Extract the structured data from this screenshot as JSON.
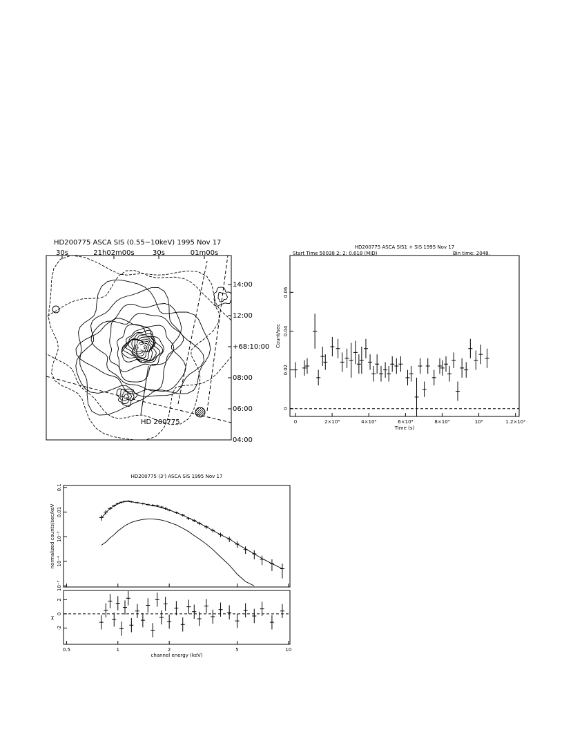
{
  "chart_data": [
    {
      "type": "contour",
      "title": "HD200775    ASCA SIS (0.55−10keV)    1995 Nov 17",
      "x_labels": [
        "30s",
        "21h02m00s",
        "30s",
        "01m00s"
      ],
      "y_labels": [
        "14:00",
        "12:00",
        "+68:10:00",
        "08:00",
        "06:00",
        "04:00"
      ],
      "source_label": "HD 200775"
    },
    {
      "type": "errorbar",
      "title": "HD200775    ASCA  SIS1 + SIS    1995 Nov 17",
      "start_time": "Start Time 50038  2: 2: 0.618 (MJD)",
      "bin_time": "Bin time:   2048.",
      "xlabel": "Time (s)",
      "ylabel": "Count/sec",
      "color": "#000000",
      "x": [
        0,
        4900,
        6400,
        10600,
        12500,
        14800,
        16300,
        20100,
        23200,
        25500,
        28100,
        30400,
        32700,
        34600,
        36100,
        38400,
        40700,
        42600,
        44500,
        46700,
        49000,
        50900,
        52800,
        55100,
        57400,
        61200,
        63100,
        66100,
        68000,
        70300,
        72200,
        75600,
        78700,
        80200,
        82100,
        84000,
        86300,
        88500,
        90800,
        93100,
        95400,
        98400,
        101100,
        104500
      ],
      "values": [
        0.02,
        0.021,
        0.022,
        0.04,
        0.016,
        0.027,
        0.024,
        0.032,
        0.031,
        0.024,
        0.026,
        0.025,
        0.029,
        0.023,
        0.025,
        0.031,
        0.024,
        0.018,
        0.023,
        0.018,
        0.02,
        0.018,
        0.023,
        0.022,
        0.023,
        0.016,
        0.018,
        0.006,
        0.022,
        0.01,
        0.022,
        0.016,
        0.022,
        0.021,
        0.023,
        0.018,
        0.025,
        0.009,
        0.021,
        0.02,
        0.031,
        0.025,
        0.028,
        0.026
      ],
      "errors": [
        0.004,
        0.004,
        0.004,
        0.009,
        0.004,
        0.005,
        0.004,
        0.005,
        0.005,
        0.005,
        0.005,
        0.009,
        0.006,
        0.005,
        0.007,
        0.005,
        0.004,
        0.004,
        0.005,
        0.004,
        0.004,
        0.004,
        0.004,
        0.004,
        0.004,
        0.004,
        0.004,
        0.01,
        0.004,
        0.004,
        0.004,
        0.004,
        0.004,
        0.004,
        0.004,
        0.004,
        0.004,
        0.005,
        0.005,
        0.004,
        0.005,
        0.005,
        0.005,
        0.005
      ],
      "xlim": [
        -3000,
        122000
      ],
      "ylim": [
        -0.004,
        0.079
      ],
      "xticks": [
        0,
        {
          "value": 20000,
          "label": "2×10⁴"
        },
        {
          "value": 40000,
          "label": "4×10⁴"
        },
        {
          "value": 60000,
          "label": "6×10⁴"
        },
        {
          "value": 80000,
          "label": "8×10⁴"
        },
        {
          "value": 100000,
          "label": "10⁵"
        },
        {
          "value": 120000,
          "label": "1.2×10⁵"
        }
      ],
      "yticks": [
        0,
        0.02,
        0.04,
        0.06
      ]
    },
    {
      "type": "spectrum",
      "title": "HD200775 (3')    ASCA SIS    1995 Nov 17",
      "xlabel": "channel energy (keV)",
      "ylabel": "normalized counts/sec/keV",
      "xscale": "log",
      "yscale": "log",
      "xlim": [
        0.48,
        10.2
      ],
      "ylim": [
        9e-06,
        0.12
      ],
      "xticks": [
        0.5,
        1,
        2,
        5,
        10
      ],
      "yticks": [
        0.1,
        0.01,
        {
          "value": 0.001,
          "label": "10⁻³"
        },
        {
          "value": 0.0001,
          "label": "10⁻⁴"
        },
        {
          "value": 1e-05,
          "label": "10⁻⁵"
        }
      ],
      "x": [
        0.8,
        0.85,
        0.9,
        0.95,
        1.0,
        1.05,
        1.1,
        1.15,
        1.2,
        1.3,
        1.4,
        1.5,
        1.6,
        1.7,
        1.8,
        1.9,
        2.0,
        2.2,
        2.4,
        2.6,
        2.8,
        3.0,
        3.3,
        3.6,
        4.0,
        4.5,
        5.0,
        5.6,
        6.3,
        7.0,
        8.0,
        9.2
      ],
      "series": [
        {
          "name": "data",
          "color": "#000000",
          "values": [
            0.006,
            0.01,
            0.014,
            0.018,
            0.022,
            0.025,
            0.027,
            0.028,
            0.026,
            0.024,
            0.022,
            0.02,
            0.019,
            0.018,
            0.016,
            0.014,
            0.012,
            0.0095,
            0.0075,
            0.0055,
            0.0045,
            0.0035,
            0.0025,
            0.0018,
            0.0012,
            0.0008,
            0.0005,
            0.0003,
            0.0002,
            0.00012,
            8e-05,
            5e-05
          ],
          "errors": [
            0.0015,
            0.002,
            0.002,
            0.002,
            0.002,
            0.002,
            0.002,
            0.002,
            0.002,
            0.002,
            0.002,
            0.002,
            0.002,
            0.002,
            0.0015,
            0.0015,
            0.0012,
            0.001,
            0.0009,
            0.0007,
            0.0006,
            0.0005,
            0.0004,
            0.0003,
            0.00025,
            0.0002,
            0.00015,
            0.0001,
            8e-05,
            5e-05,
            4e-05,
            3e-05
          ]
        },
        {
          "name": "model",
          "color": "#000000",
          "values": [
            0.0055,
            0.0095,
            0.014,
            0.018,
            0.022,
            0.025,
            0.027,
            0.027,
            0.026,
            0.024,
            0.022,
            0.02,
            0.018,
            0.017,
            0.015,
            0.0135,
            0.012,
            0.0095,
            0.0075,
            0.0057,
            0.0045,
            0.0035,
            0.0025,
            0.0018,
            0.0012,
            0.0008,
            0.0005,
            0.00032,
            0.0002,
            0.00013,
            8e-05,
            5e-05
          ]
        },
        {
          "name": "component",
          "color": "#000000",
          "values": [
            0.00045,
            0.0006,
            0.0009,
            0.0012,
            0.0017,
            0.0022,
            0.0028,
            0.0033,
            0.0038,
            0.0045,
            0.005,
            0.0052,
            0.0052,
            0.005,
            0.0047,
            0.0043,
            0.0038,
            0.003,
            0.0022,
            0.0016,
            0.0011,
            0.0008,
            0.0005,
            0.0003,
            0.00015,
            7e-05,
            3e-05,
            1.5e-05,
            1e-05,
            null,
            null,
            null
          ]
        }
      ],
      "residuals": {
        "ylabel": "χ",
        "ylim": [
          -4.3,
          3.3
        ],
        "yticks": [
          2,
          0,
          -2
        ],
        "values": [
          -1.2,
          0.5,
          1.8,
          -0.8,
          1.5,
          -2.1,
          0.9,
          2.2,
          -1.6,
          0.4,
          -0.9,
          1.2,
          -2.3,
          2.0,
          -0.5,
          1.4,
          -1.1,
          0.8,
          -1.5,
          1.0,
          0.3,
          -0.7,
          1.1,
          -0.4,
          0.6,
          0.2,
          -1.0,
          0.5,
          -0.3,
          0.7,
          -1.2,
          0.4
        ],
        "errors": [
          1,
          1,
          1,
          1,
          1,
          1,
          1,
          1,
          1,
          1,
          1,
          1,
          1,
          1,
          1,
          1,
          1,
          1,
          1,
          1,
          1,
          1,
          1,
          1,
          1,
          1,
          1,
          1,
          1,
          1,
          1,
          1
        ]
      }
    }
  ]
}
